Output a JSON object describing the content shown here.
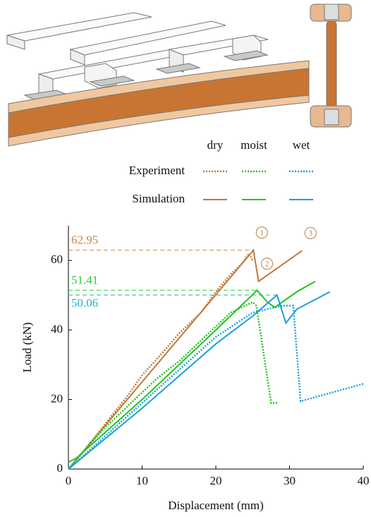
{
  "chart_data": {
    "type": "line",
    "x_label": "Displacement (mm)",
    "y_label": "Load (kN)",
    "xlim": [
      0,
      40
    ],
    "xticks": [
      0,
      10,
      20,
      30,
      40
    ],
    "ylim": [
      0,
      70
    ],
    "yticks": [
      0,
      20,
      40,
      60
    ],
    "legend": {
      "rows": [
        "Experiment",
        "Simulation"
      ]
    },
    "series": [
      {
        "name": "dry",
        "color": "#c0793a",
        "experiment": {
          "x": [
            0,
            2,
            5,
            8,
            10,
            13,
            15,
            18,
            20,
            22,
            23.5,
            24.5,
            25
          ],
          "values": [
            0,
            5,
            13,
            21,
            27,
            34,
            39,
            45,
            51,
            56,
            59,
            62,
            60
          ]
        },
        "simulation": {
          "x": [
            0,
            25.1,
            25.8,
            31.7
          ],
          "values": [
            0,
            62.95,
            54,
            62.8
          ]
        }
      },
      {
        "name": "moist",
        "color": "#22c322",
        "experiment": {
          "x": [
            0,
            2,
            5,
            8,
            10,
            12,
            15,
            18,
            20,
            22,
            25,
            25.5,
            27.5,
            28.5
          ],
          "values": [
            0,
            5,
            12,
            18,
            22,
            26,
            31,
            37,
            41,
            45,
            48,
            47,
            19,
            19
          ]
        },
        "simulation": {
          "x": [
            0,
            1,
            10,
            15,
            20,
            25.6,
            27,
            28,
            31,
            33.5
          ],
          "values": [
            2,
            3,
            20,
            30,
            40,
            51.41,
            48,
            46.5,
            51,
            54
          ]
        }
      },
      {
        "name": "wet",
        "color": "#1a9fd8",
        "experiment": {
          "x": [
            0,
            10,
            20,
            25,
            29,
            30.5,
            31.5,
            40
          ],
          "values": [
            0,
            19,
            38,
            45,
            47,
            47,
            19.5,
            24.5
          ]
        },
        "simulation": {
          "x": [
            0,
            10,
            20,
            25,
            28.3,
            29.5,
            31,
            35.5
          ],
          "values": [
            0,
            17.5,
            36,
            44,
            50.06,
            42,
            46,
            51
          ]
        }
      }
    ],
    "reference_lines": [
      {
        "value": 62.95,
        "x": 25.1,
        "color": "#c8874a"
      },
      {
        "value": 51.41,
        "x": 25.6,
        "color": "#33cc33"
      },
      {
        "value": 50.06,
        "x": 28.3,
        "color": "#2aaec8"
      }
    ],
    "markers": [
      {
        "label": "1",
        "x": 25.1,
        "y": 62.95
      },
      {
        "label": "2",
        "x": 25.8,
        "y": 54
      },
      {
        "label": "3",
        "x": 31.7,
        "y": 62.8
      }
    ]
  }
}
